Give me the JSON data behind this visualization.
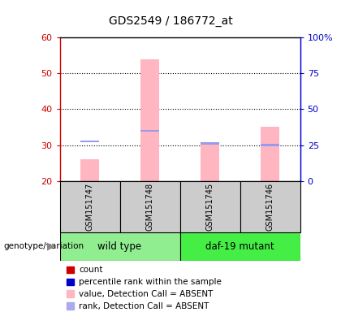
{
  "title": "GDS2549 / 186772_at",
  "samples": [
    "GSM151747",
    "GSM151748",
    "GSM151745",
    "GSM151746"
  ],
  "ylim_left": [
    20,
    60
  ],
  "ylim_right": [
    0,
    100
  ],
  "yticks_left": [
    20,
    30,
    40,
    50,
    60
  ],
  "yticks_right": [
    0,
    25,
    50,
    75,
    100
  ],
  "ytick_labels_right": [
    "0",
    "25",
    "50",
    "75",
    "100%"
  ],
  "bar_bottom": 20,
  "pink_values": [
    26.0,
    54.0,
    30.5,
    35.0
  ],
  "blue_marker_values": [
    31.0,
    34.0,
    30.5,
    30.0
  ],
  "bar_color_pink": "#FFB6C1",
  "bar_color_blue": "#9999EE",
  "left_axis_color": "#CC0000",
  "right_axis_color": "#0000CC",
  "bg_sample": "#CCCCCC",
  "wt_color": "#90EE90",
  "daf_color": "#44EE44",
  "legend_items": [
    {
      "color": "#CC0000",
      "label": "count"
    },
    {
      "color": "#0000CC",
      "label": "percentile rank within the sample"
    },
    {
      "color": "#FFB6C1",
      "label": "value, Detection Call = ABSENT"
    },
    {
      "color": "#AAAAEE",
      "label": "rank, Detection Call = ABSENT"
    }
  ],
  "bar_width": 0.3
}
